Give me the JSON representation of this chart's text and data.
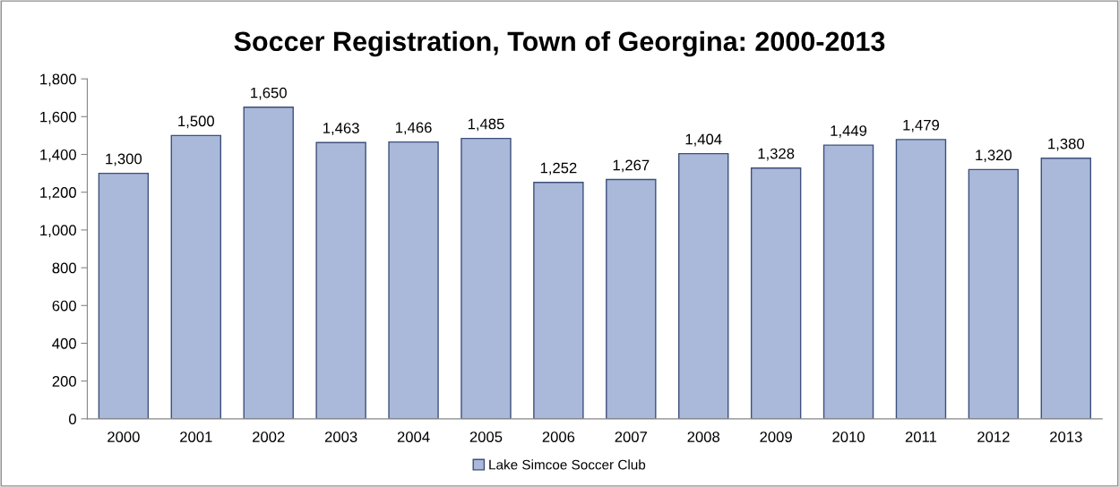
{
  "chart_data": {
    "type": "bar",
    "title": "Soccer Registration, Town of Georgina: 2000-2013",
    "categories": [
      "2000",
      "2001",
      "2002",
      "2003",
      "2004",
      "2005",
      "2006",
      "2007",
      "2008",
      "2009",
      "2010",
      "2011",
      "2012",
      "2013"
    ],
    "series": [
      {
        "name": "Lake Simcoe Soccer Club",
        "color": "#aab9d9",
        "values": [
          1300,
          1500,
          1650,
          1463,
          1466,
          1485,
          1252,
          1267,
          1404,
          1328,
          1449,
          1479,
          1320,
          1380
        ],
        "value_labels": [
          "1,300",
          "1,500",
          "1,650",
          "1,463",
          "1,466",
          "1,485",
          "1,252",
          "1,267",
          "1,404",
          "1,328",
          "1,449",
          "1,479",
          "1,320",
          "1,380"
        ]
      }
    ],
    "ylim": [
      0,
      1800
    ],
    "yticks": [
      {
        "value": 0,
        "label": "0"
      },
      {
        "value": 200,
        "label": "200"
      },
      {
        "value": 400,
        "label": "400"
      },
      {
        "value": 600,
        "label": "600"
      },
      {
        "value": 800,
        "label": "800"
      },
      {
        "value": 1000,
        "label": "1,000"
      },
      {
        "value": 1200,
        "label": "1,200"
      },
      {
        "value": 1400,
        "label": "1,400"
      },
      {
        "value": 1600,
        "label": "1,600"
      },
      {
        "value": 1800,
        "label": "1,800"
      }
    ],
    "grid": false,
    "legend": "bottom"
  }
}
